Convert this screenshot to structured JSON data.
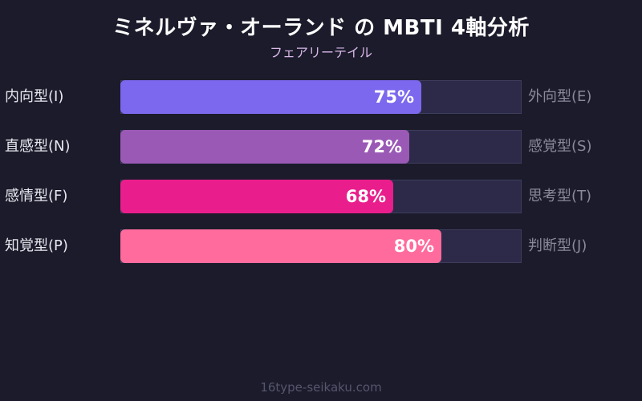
{
  "header": {
    "title": "ミネルヴァ・オーランド の MBTI 4軸分析",
    "subtitle": "フェアリーテイル"
  },
  "footer": {
    "text": "16type-seikaku.com"
  },
  "colors": {
    "background": "#1b1b2b",
    "track": "#2c2a48",
    "ie": "#7b68ee",
    "ns": "#9b59b6",
    "ft": "#e91e8c",
    "pj": "#ff6b9d"
  },
  "chart_data": {
    "type": "bar",
    "orientation": "horizontal",
    "title": "ミネルヴァ・オーランド の MBTI 4軸分析",
    "subtitle": "フェアリーテイル",
    "xlim": [
      0,
      100
    ],
    "categories": [
      "内向型(I) / 外向型(E)",
      "直感型(N) / 感覚型(S)",
      "感情型(F) / 思考型(T)",
      "知覚型(P) / 判断型(J)"
    ],
    "left_labels": [
      "内向型(I)",
      "直感型(N)",
      "感情型(F)",
      "知覚型(P)"
    ],
    "right_labels": [
      "外向型(E)",
      "感覚型(S)",
      "思考型(T)",
      "判断型(J)"
    ],
    "values": [
      75,
      72,
      68,
      80
    ],
    "value_labels": [
      "75%",
      "72%",
      "68%",
      "80%"
    ],
    "bar_colors": [
      "#7b68ee",
      "#9b59b6",
      "#e91e8c",
      "#ff6b9d"
    ]
  },
  "rows": [
    {
      "left": "内向型(I)",
      "right": "外向型(E)",
      "value": 75,
      "label": "75%",
      "color": "#7b68ee"
    },
    {
      "left": "直感型(N)",
      "right": "感覚型(S)",
      "value": 72,
      "label": "72%",
      "color": "#9b59b6"
    },
    {
      "left": "感情型(F)",
      "right": "思考型(T)",
      "value": 68,
      "label": "68%",
      "color": "#e91e8c"
    },
    {
      "left": "知覚型(P)",
      "right": "判断型(J)",
      "value": 80,
      "label": "80%",
      "color": "#ff6b9d"
    }
  ]
}
